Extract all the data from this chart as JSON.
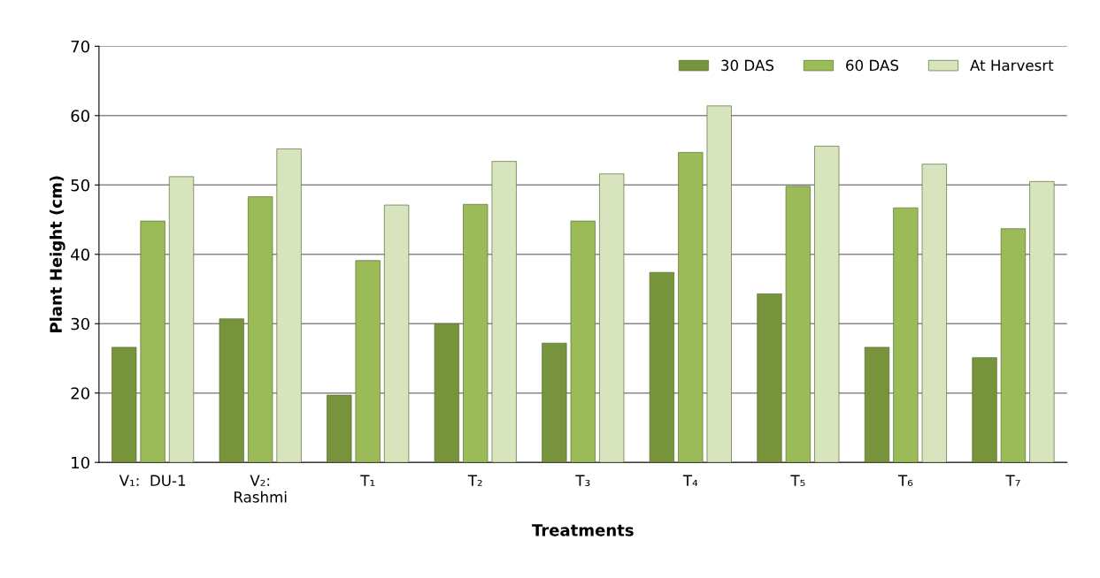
{
  "chart_data": {
    "type": "bar",
    "xlabel": "Treatments",
    "ylabel": "Plant Height (cm)",
    "categories": [
      "V₁:  DU-1",
      "V₂:\nRashmi",
      "T₁",
      "T₂",
      "T₃",
      "T₄",
      "T₅",
      "T₆",
      "T₇"
    ],
    "series": [
      {
        "name": "30 DAS",
        "color": "#77933c",
        "values": [
          26.6,
          30.7,
          19.7,
          30.0,
          27.2,
          37.4,
          34.3,
          26.6,
          25.1
        ]
      },
      {
        "name": "60 DAS",
        "color": "#9bbb59",
        "values": [
          44.8,
          48.3,
          39.1,
          47.2,
          44.8,
          54.7,
          49.8,
          46.7,
          43.7
        ]
      },
      {
        "name": "At Harvesrt",
        "color": "#d7e4bd",
        "values": [
          51.2,
          55.2,
          47.1,
          53.4,
          51.6,
          61.4,
          55.6,
          53.0,
          50.5
        ]
      }
    ],
    "ylim": [
      10,
      70
    ],
    "yticks": [
      10,
      20,
      30,
      40,
      50,
      60,
      70
    ],
    "grid": "y",
    "legend": "top right"
  }
}
